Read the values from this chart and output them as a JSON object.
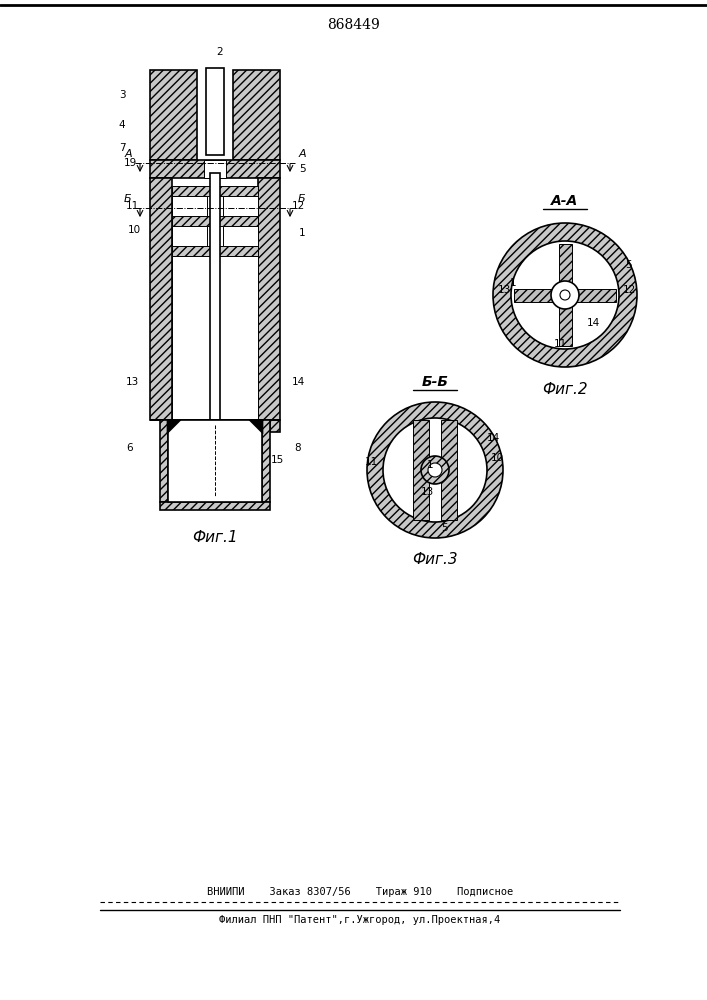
{
  "patent_number": "868449",
  "fig1_caption": "Фиг.1",
  "fig2_caption": "Фиг.2",
  "fig3_caption": "Фиг.3",
  "section_aa": "А-А",
  "section_bb": "Б-Б",
  "footer_line1": "ВНИИПИ    Заказ 8307/56    Тираж 910    Подписное",
  "footer_line2": "Филиал ПНП \"Патент\",г.Ужгород, ул.Проектная,4",
  "bg_color": "#ffffff",
  "line_color": "#000000"
}
